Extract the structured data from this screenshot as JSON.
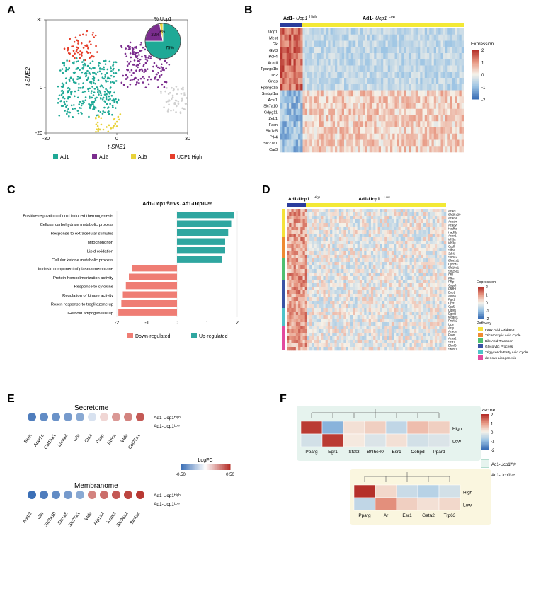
{
  "panels": {
    "A": {
      "label": "A",
      "type": "scatter",
      "axes": {
        "x": "t-SNE1",
        "y": "t-SNE2",
        "xlim": [
          -30,
          30
        ],
        "ylim": [
          -20,
          30
        ],
        "xticks": [
          -30,
          0,
          30
        ],
        "yticks": [
          -20,
          0,
          30
        ]
      },
      "clusters": [
        {
          "name": "Ad1",
          "color": "#1fa996"
        },
        {
          "name": "Ad2",
          "color": "#7b2d8e"
        },
        {
          "name": "Ad5",
          "color": "#e8d23a"
        },
        {
          "name": "UCP1 High",
          "color": "#e63e2b"
        }
      ],
      "pie": {
        "title": "% Ucp1",
        "slices": [
          {
            "label": "75%",
            "value": 75,
            "color": "#1fa996"
          },
          {
            "label": "22%",
            "value": 22,
            "color": "#7b2d8e"
          },
          {
            "label": "3%",
            "value": 3,
            "color": "#e8d23a"
          }
        ]
      }
    },
    "B": {
      "label": "B",
      "type": "heatmap",
      "col_groups": [
        {
          "name": "Ad1-Ucp1_High",
          "label": "Ad1-Ucp1",
          "sup": "High",
          "color": "#2b3c9c",
          "width": 0.12
        },
        {
          "name": "Ad1-Ucp1_Low",
          "label": "Ad1-Ucp1",
          "sup": "Low",
          "color": "#f3e935",
          "width": 0.88
        }
      ],
      "row_genes": [
        "Ucp1",
        "Mest",
        "Gk",
        "GM3",
        "Pdk4",
        "Acadl",
        "Ppargc1b",
        "Dio2",
        "Gnas",
        "Ppargc1a",
        "Srebpf1a",
        "Acsl1",
        "Slc7a10",
        "Gdpg11",
        "Zeb1",
        "Facn",
        "Slc1a5",
        "Pfk4",
        "Slc27a1",
        "Car3"
      ],
      "expression_legend": {
        "title": "Expression",
        "min": -2,
        "max": 2,
        "colors": [
          "#3b6fb6",
          "#9cc4e4",
          "#f6f2e9",
          "#e89a85",
          "#b5302a"
        ]
      }
    },
    "C": {
      "label": "C",
      "type": "bar",
      "title": "Ad1-Ucp1High vs. Ad1-Ucp1Low",
      "xlim": [
        -2,
        2
      ],
      "xticks": [
        -2,
        -1,
        0,
        1,
        2
      ],
      "series": [
        {
          "name": "Down-regulated",
          "color": "#ef7d74"
        },
        {
          "name": "Up-regulated",
          "color": "#2fa6a0"
        }
      ],
      "bars": [
        {
          "label": "Positive regulation of cold induced thermogenesis",
          "value": 1.9,
          "group": "up"
        },
        {
          "label": "Cellular carbohydrate metabolic process",
          "value": 1.8,
          "group": "up"
        },
        {
          "label": "Response to extracellular stimulus",
          "value": 1.7,
          "group": "up"
        },
        {
          "label": "Mitochondrion",
          "value": 1.6,
          "group": "up"
        },
        {
          "label": "Lipid oxidation",
          "value": 1.6,
          "group": "up"
        },
        {
          "label": "Cellular ketone metabolic process",
          "value": 1.5,
          "group": "up"
        },
        {
          "label": "Intrinsic component of plasma membrane",
          "value": -1.5,
          "group": "down"
        },
        {
          "label": "Protein homodimerization activity",
          "value": -1.6,
          "group": "down"
        },
        {
          "label": "Response to cytokine",
          "value": -1.7,
          "group": "down"
        },
        {
          "label": "Regulation of kinase activity",
          "value": -1.8,
          "group": "down"
        },
        {
          "label": "Rosen response to troglitazone up",
          "value": -1.85,
          "group": "down"
        },
        {
          "label": "Gerhold adipogenesis up",
          "value": -1.95,
          "group": "down"
        }
      ]
    },
    "D": {
      "label": "D",
      "type": "heatmap",
      "col_groups": [
        {
          "name": "Ad1-Ucp1_High",
          "label": "Ad1-Ucp1",
          "sup": "High",
          "color": "#2b3c9c",
          "width": 0.12
        },
        {
          "name": "Ad1-Ucp1_Low",
          "label": "Ad1-Ucp1",
          "sup": "Low",
          "color": "#f3e935",
          "width": 0.88
        }
      ],
      "pathway_colors": [
        {
          "name": "Fatty Acid Oxidation",
          "color": "#f5e23b"
        },
        {
          "name": "Tricarboxylic Acid Cycle",
          "color": "#ee8b32"
        },
        {
          "name": "Bile Acid Transport",
          "color": "#4fbf71"
        },
        {
          "name": "Glycolytic Process",
          "color": "#3a53a4"
        },
        {
          "name": "Triglyceride/Fatty Acid Cycle",
          "color": "#4fc2c9"
        },
        {
          "name": "de novo Lipogenesis",
          "color": "#e24a9e"
        }
      ],
      "row_genes": [
        "Acadl",
        "Slc25a20",
        "Acad9",
        "Acadm",
        "Acadvl",
        "Hadha",
        "Hadhb",
        "Acox1",
        "Idh3a",
        "Idh3g",
        "Ogdh",
        "Sdha",
        "Sdhb",
        "Sucla2",
        "Slco1a1",
        "Cyb5r3",
        "Slc10a1",
        "Slc25a1",
        "Pfkl",
        "Pfkm",
        "Pfkp",
        "Gapdh",
        "Pfkfb1",
        "Eno1",
        "Aldoa",
        "Pgk1",
        "Gpd1",
        "Gpd2",
        "Dgat1",
        "Dgat2",
        "Mogat1",
        "Pnpla2",
        "Lipe",
        "Acly",
        "Acaca",
        "Fasn",
        "Acss2",
        "Scd1",
        "Elovl6",
        "Srebf1"
      ],
      "expression_legend": {
        "title": "Expression",
        "min": -2,
        "max": 2,
        "colors": [
          "#3b6fb6",
          "#9cc4e4",
          "#f6f2e9",
          "#e89a85",
          "#b5302a"
        ]
      }
    },
    "E": {
      "label": "E",
      "type": "dotplot",
      "groups": [
        {
          "title": "Secretome",
          "rows": [
            "Ad1-Ucp1High",
            "Ad1-Ucp1Low"
          ],
          "genes": [
            "Retn",
            "Acvr1c",
            "Col15a1",
            "Lama4",
            "Ghr",
            "Ctsz",
            "Psap",
            "Il15ra",
            "Vldlr",
            "Col27a1"
          ],
          "values": [
            [
              -0.45,
              -0.4,
              -0.38,
              -0.35,
              -0.3,
              -0.1,
              0.1,
              0.25,
              0.3,
              0.4
            ],
            [
              null,
              null,
              null,
              null,
              null,
              null,
              null,
              null,
              null,
              null
            ]
          ]
        },
        {
          "title": "Membranome",
          "rows": [
            "Ad1-Ucp1High",
            "Ad1-Ucp1Low"
          ],
          "genes": [
            "Adrb3",
            "Ghr",
            "Slc7a10",
            "Slc1a5",
            "Slc27a1",
            "Vldlr",
            "Atp1a2",
            "Kcnk3",
            "Slc36a2",
            "Slc4a4"
          ],
          "values": [
            [
              -0.5,
              -0.45,
              -0.4,
              -0.35,
              -0.3,
              0.3,
              0.35,
              0.4,
              0.45,
              0.48
            ],
            [
              null,
              null,
              null,
              null,
              null,
              null,
              null,
              null,
              null,
              null
            ]
          ]
        }
      ],
      "logfc_legend": {
        "title": "LogFC",
        "min": -0.5,
        "max": 0.5,
        "colors": [
          "#3b6fb6",
          "#ffffff",
          "#b5302a"
        ]
      }
    },
    "F": {
      "label": "F",
      "type": "heatmap",
      "zscore_legend": {
        "title": "zscore",
        "min": -2,
        "max": 2,
        "colors": [
          "#3b6fb6",
          "#9cc4e4",
          "#f6f2e9",
          "#e89a85",
          "#b5302a"
        ]
      },
      "blocks": [
        {
          "bg": "#e6f3ee",
          "border_label": "Ad1-Ucp1High",
          "rows": [
            "High",
            "Low"
          ],
          "cols": [
            "Pparg",
            "Egr1",
            "Stat3",
            "Bhlhe40",
            "Esr1",
            "Cebpd",
            "Ppard"
          ],
          "values": [
            [
              1.9,
              -1.2,
              0.2,
              0.4,
              -0.6,
              0.6,
              0.4
            ],
            [
              -0.4,
              1.9,
              0.1,
              -0.3,
              0.2,
              -0.4,
              -0.3
            ]
          ]
        },
        {
          "bg": "#faf6df",
          "border_label": "Ad1-Ucp1Low",
          "rows": [
            "High",
            "Low"
          ],
          "cols": [
            "Pparg",
            "Ar",
            "Esr1",
            "Gata2",
            "Trp63"
          ],
          "values": [
            [
              2.0,
              0.3,
              -0.5,
              -0.7,
              -0.4
            ],
            [
              -0.6,
              1.1,
              0.4,
              0.2,
              0.3
            ]
          ]
        }
      ]
    }
  }
}
